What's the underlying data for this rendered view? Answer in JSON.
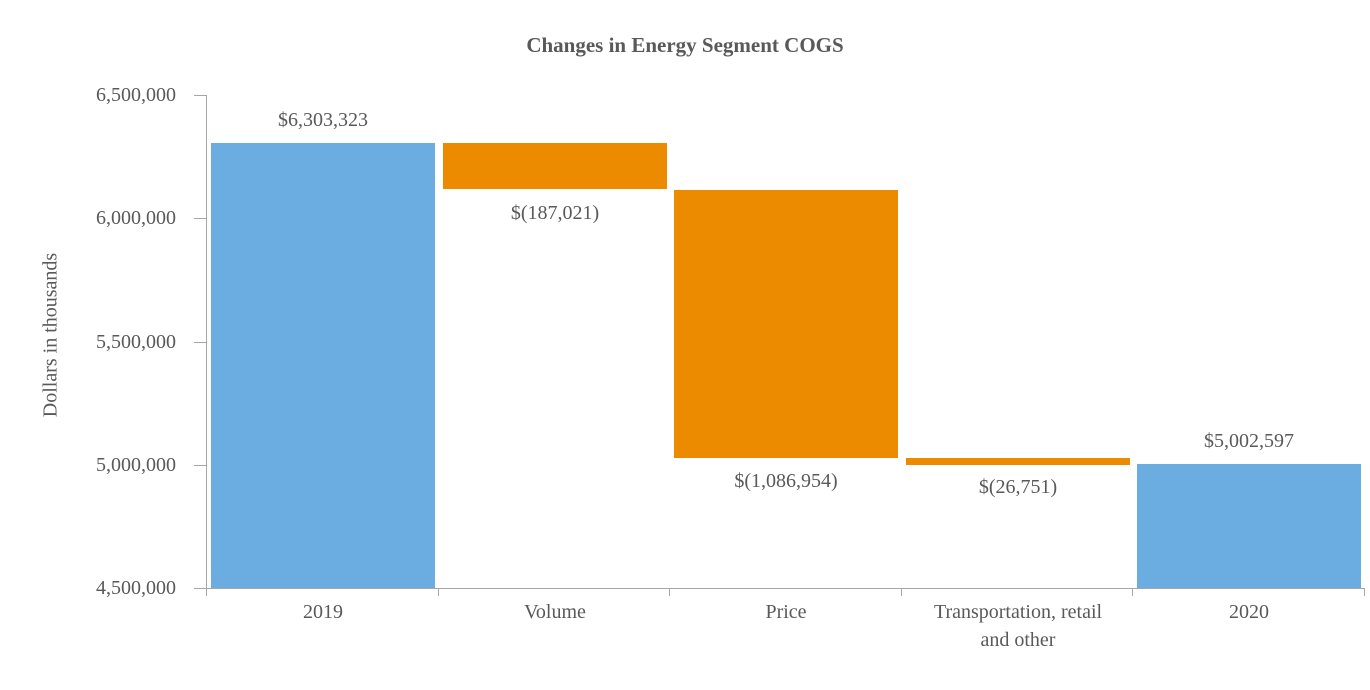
{
  "chart_data": {
    "type": "bar",
    "subtype": "waterfall",
    "title": "Changes in Energy Segment COGS",
    "ylabel": "Dollars in thousands",
    "xlabel": "",
    "ylim": [
      4500000,
      6500000
    ],
    "ytick_interval": 500000,
    "ytick_labels": [
      "6,500,000",
      "6,000,000",
      "5,500,000",
      "5,000,000",
      "4,500,000"
    ],
    "grid": "off",
    "legend": "none",
    "categories": [
      "2019",
      "Volume",
      "Price",
      "Transportation, retail\nand other",
      "2020"
    ],
    "bars": [
      {
        "category": "2019",
        "role": "total",
        "value": 6303323,
        "from": 4500000,
        "to": 6303323,
        "color_key": "total",
        "data_label": "$6,303,323",
        "label_position": "above"
      },
      {
        "category": "Volume",
        "role": "decrease",
        "value": -187021,
        "from": 6303323,
        "to": 6116302,
        "color_key": "change",
        "data_label": "$(187,021)",
        "label_position": "below"
      },
      {
        "category": "Price",
        "role": "decrease",
        "value": -1086954,
        "from": 6116302,
        "to": 5029348,
        "color_key": "change",
        "data_label": "$(1,086,954)",
        "label_position": "below"
      },
      {
        "category": "Transportation, retail\nand other",
        "role": "decrease",
        "value": -26751,
        "from": 5029348,
        "to": 5002597,
        "color_key": "change",
        "data_label": "$(26,751)",
        "label_position": "below"
      },
      {
        "category": "2020",
        "role": "total",
        "value": 5002597,
        "from": 4500000,
        "to": 5002597,
        "color_key": "total",
        "data_label": "$5,002,597",
        "label_position": "above"
      }
    ],
    "colors": {
      "total": "#6CADE1",
      "change": "#EC8B00",
      "axis": "#A6A6A6",
      "text": "#595959"
    }
  }
}
